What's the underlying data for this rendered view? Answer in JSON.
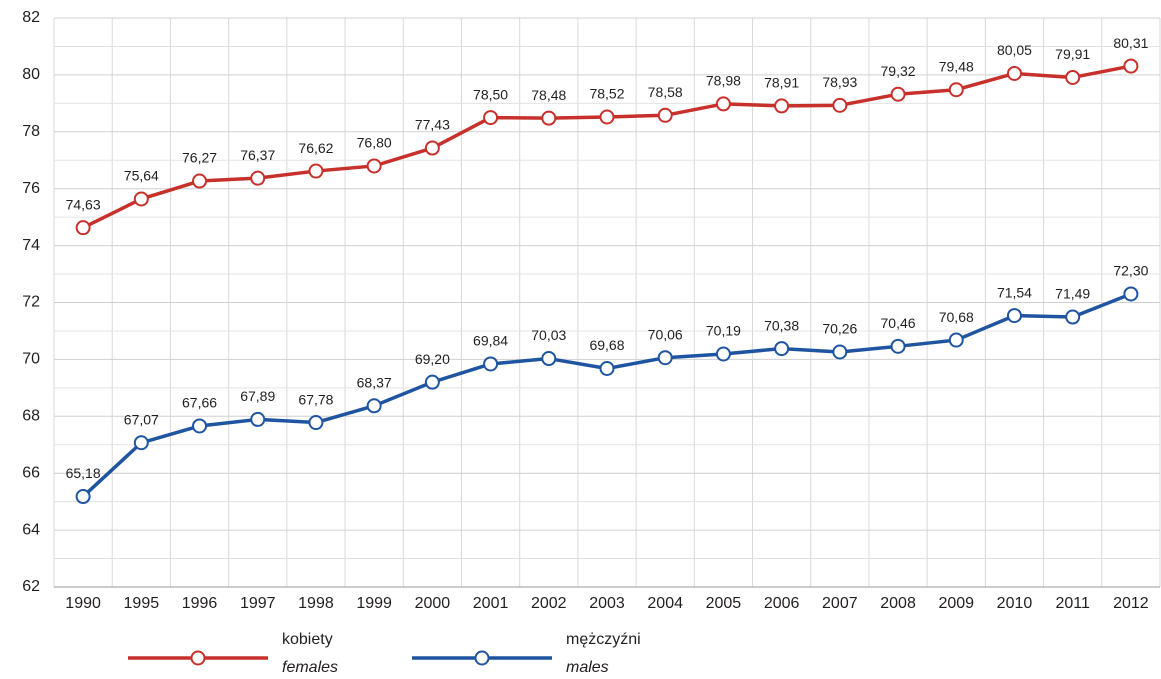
{
  "chart_data": {
    "type": "line",
    "categories": [
      "1990",
      "1995",
      "1996",
      "1997",
      "1998",
      "1999",
      "2000",
      "2001",
      "2002",
      "2003",
      "2004",
      "2005",
      "2006",
      "2007",
      "2008",
      "2009",
      "2010",
      "2011",
      "2012"
    ],
    "series": [
      {
        "name": "kobiety",
        "name_en": "females",
        "color": "#c8312b",
        "values": [
          74.63,
          75.64,
          76.27,
          76.37,
          76.62,
          76.8,
          77.43,
          78.5,
          78.48,
          78.52,
          78.58,
          78.98,
          78.91,
          78.93,
          79.32,
          79.48,
          80.05,
          79.91,
          80.31
        ],
        "value_labels": [
          "74,63",
          "75,64",
          "76,27",
          "76,37",
          "76,62",
          "76,80",
          "77,43",
          "78,50",
          "78,48",
          "78,52",
          "78,58",
          "78,98",
          "78,91",
          "78,93",
          "79,32",
          "79,48",
          "80,05",
          "79,91",
          "80,31"
        ]
      },
      {
        "name": "mężczyźni",
        "name_en": "males",
        "color": "#1f55a0",
        "values": [
          65.18,
          67.07,
          67.66,
          67.89,
          67.78,
          68.37,
          69.2,
          69.84,
          70.03,
          69.68,
          70.06,
          70.19,
          70.38,
          70.26,
          70.46,
          70.68,
          71.54,
          71.49,
          72.3
        ],
        "value_labels": [
          "65,18",
          "67,07",
          "67,66",
          "67,89",
          "67,78",
          "68,37",
          "69,20",
          "69,84",
          "70,03",
          "69,68",
          "70,06",
          "70,19",
          "70,38",
          "70,26",
          "70,46",
          "70,68",
          "71,54",
          "71,49",
          "72,30"
        ]
      }
    ],
    "ylim": [
      62,
      82
    ],
    "yticks": [
      62,
      64,
      66,
      68,
      70,
      72,
      74,
      76,
      78,
      80,
      82
    ],
    "grid": true
  }
}
